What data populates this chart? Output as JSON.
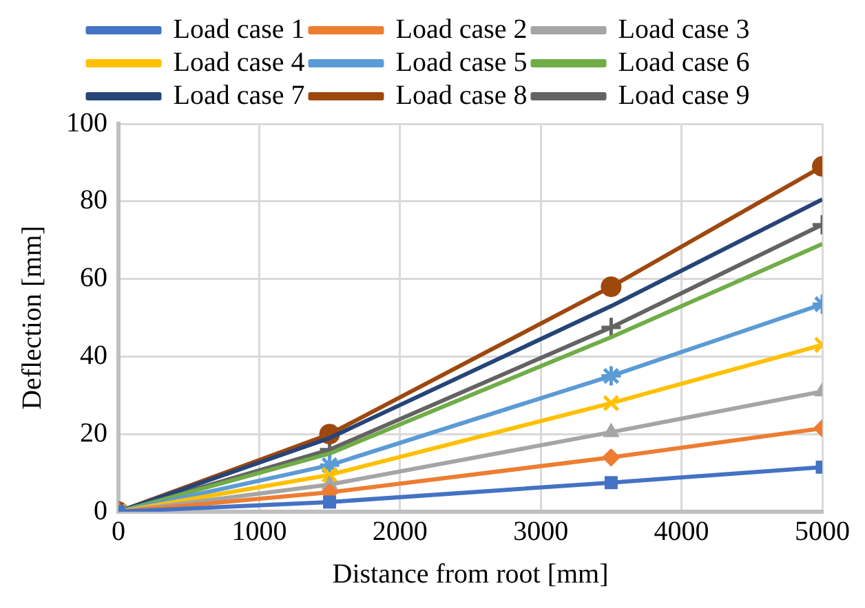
{
  "chart_data": {
    "type": "line",
    "xlabel": "Distance from root [mm]",
    "ylabel": "Deflection [mm]",
    "x": [
      0,
      1500,
      3500,
      5000
    ],
    "xlim": [
      0,
      5000
    ],
    "xticks": [
      0,
      1000,
      2000,
      3000,
      4000,
      5000
    ],
    "ylim": [
      0,
      100
    ],
    "yticks": [
      0,
      20,
      40,
      60,
      80,
      100
    ],
    "grid": true,
    "legend": "top",
    "series": [
      {
        "name": "Load case 1",
        "color": "#4472c4",
        "marker": "square",
        "values": [
          0,
          2.5,
          7.5,
          11.5
        ]
      },
      {
        "name": "Load case 2",
        "color": "#ed7d31",
        "marker": "diamond",
        "values": [
          0,
          5,
          14,
          21.5
        ]
      },
      {
        "name": "Load case 3",
        "color": "#a5a5a5",
        "marker": "triangle",
        "values": [
          0,
          7,
          20.5,
          31
        ]
      },
      {
        "name": "Load case 4",
        "color": "#ffc000",
        "marker": "x",
        "values": [
          0,
          9.5,
          28,
          43
        ]
      },
      {
        "name": "Load case 5",
        "color": "#5b9bd5",
        "marker": "cross",
        "values": [
          0,
          12,
          35,
          53.5
        ]
      },
      {
        "name": "Load case 6",
        "color": "#70ad47",
        "marker": "none",
        "values": [
          0,
          15,
          45,
          69
        ]
      },
      {
        "name": "Load case 7",
        "color": "#264478",
        "marker": "none",
        "values": [
          0,
          19,
          53,
          80.5
        ]
      },
      {
        "name": "Load case 8",
        "color": "#9e480e",
        "marker": "circle",
        "values": [
          0,
          20,
          58,
          89
        ]
      },
      {
        "name": "Load case 9",
        "color": "#636363",
        "marker": "plus",
        "values": [
          0,
          16,
          47.5,
          74
        ]
      }
    ]
  }
}
